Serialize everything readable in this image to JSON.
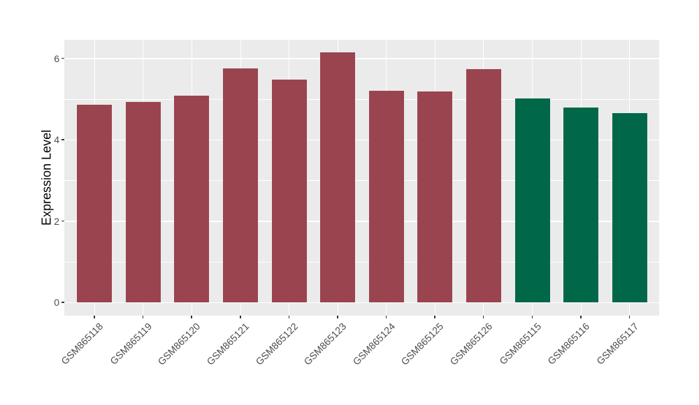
{
  "chart_data": {
    "type": "bar",
    "title": "",
    "xlabel": "",
    "ylabel": "Expression Level",
    "categories": [
      "GSM865118",
      "GSM865119",
      "GSM865120",
      "GSM865121",
      "GSM865122",
      "GSM865123",
      "GSM865124",
      "GSM865125",
      "GSM865126",
      "GSM865115",
      "GSM865116",
      "GSM865117"
    ],
    "values": [
      4.86,
      4.93,
      5.08,
      5.76,
      5.48,
      6.15,
      5.21,
      5.19,
      5.74,
      5.02,
      4.8,
      4.66
    ],
    "bar_colors": [
      "#9A4450",
      "#9A4450",
      "#9A4450",
      "#9A4450",
      "#9A4450",
      "#9A4450",
      "#9A4450",
      "#9A4450",
      "#9A4450",
      "#006849",
      "#006849",
      "#006849"
    ],
    "color_groups": [
      {
        "color": "#9A4450",
        "categories": [
          "GSM865118",
          "GSM865119",
          "GSM865120",
          "GSM865121",
          "GSM865122",
          "GSM865123",
          "GSM865124",
          "GSM865125",
          "GSM865126"
        ]
      },
      {
        "color": "#006849",
        "categories": [
          "GSM865115",
          "GSM865116",
          "GSM865117"
        ]
      }
    ],
    "yticks": [
      0,
      2,
      4,
      6
    ],
    "yticks_minor": [
      1,
      3,
      5
    ],
    "ylim": [
      -0.31,
      6.46
    ],
    "x_tick_angle": 45,
    "legend": false,
    "grid": true,
    "panel_bg": "#EBEBEB",
    "grid_color": "#FFFFFF",
    "tick_mark_color": "#333333",
    "tick_label_color": "#4D4D4D",
    "axis_title_color": "#000000",
    "background": "#FFFFFF"
  }
}
